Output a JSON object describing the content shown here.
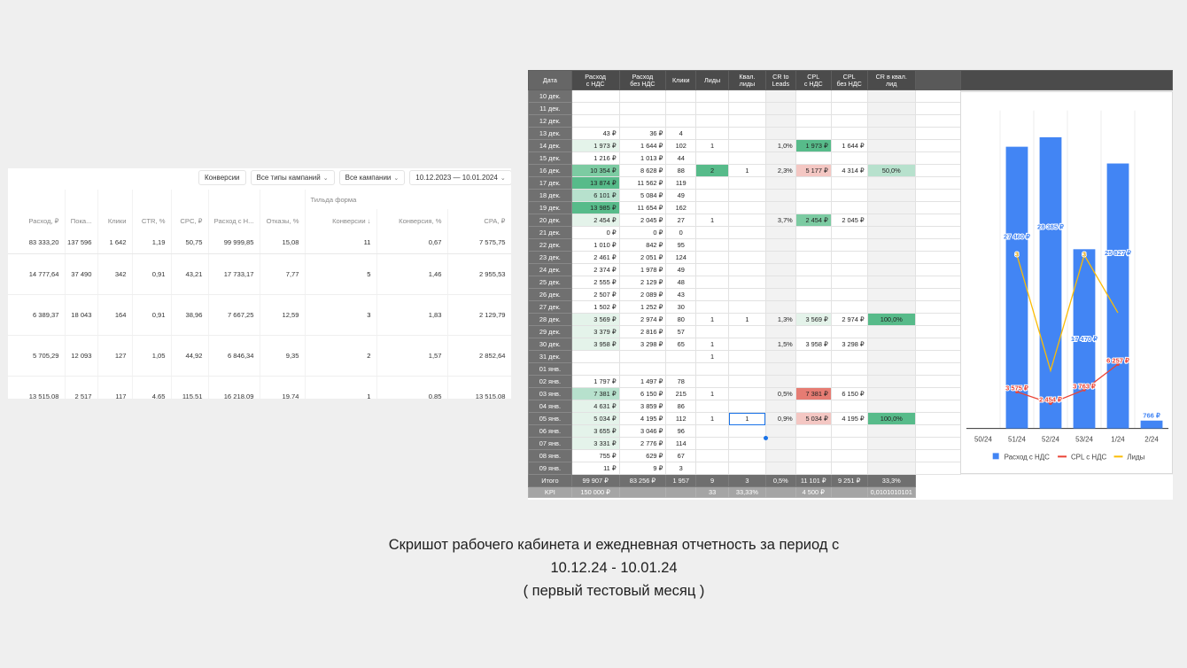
{
  "cabinet": {
    "filters": [
      {
        "label": "Конверсии",
        "chev": false
      },
      {
        "label": "Все типы кампаний",
        "chev": true
      },
      {
        "label": "Все кампании",
        "chev": true
      },
      {
        "label": "10.12.2023 — 10.01.2024",
        "chev": true
      },
      {
        "label": "»",
        "chev": false
      }
    ],
    "goal_label": "Тильда форма",
    "headers": [
      "Расход, ₽",
      "Пока...",
      "Клики",
      "CTR, %",
      "CPC, ₽",
      "Расход с Н...",
      "Отказы, %",
      "Конверсии ↓",
      "Конверсия, %",
      "CPA, ₽"
    ],
    "total": [
      "83 333,20",
      "137 596",
      "1 642",
      "1,19",
      "50,75",
      "99 999,85",
      "15,08",
      "11",
      "0,67",
      "7 575,75"
    ],
    "rows": [
      [
        "14 777,64",
        "37 490",
        "342",
        "0,91",
        "43,21",
        "17 733,17",
        "7,77",
        "5",
        "1,46",
        "2 955,53"
      ],
      [
        "6 389,37",
        "18 043",
        "164",
        "0,91",
        "38,96",
        "7 667,25",
        "12,59",
        "3",
        "1,83",
        "2 129,79"
      ],
      [
        "5 705,29",
        "12 093",
        "127",
        "1,05",
        "44,92",
        "6 846,34",
        "9,35",
        "2",
        "1,57",
        "2 852,64"
      ],
      [
        "13 515,08",
        "2 517",
        "117",
        "4,65",
        "115,51",
        "16 218,09",
        "19,74",
        "1",
        "0,85",
        "13 515,08"
      ]
    ]
  },
  "sheet": {
    "headers": [
      "Дата",
      "Расход\nс НДС",
      "Расход\nбез НДС",
      "Клики",
      "Лиды",
      "Квал.\nлиды",
      "CR to\nLeads",
      "CPL\nс НДС",
      "CPL\nбез НДС",
      "CR в квал.\nлид"
    ],
    "rows": [
      [
        "10 дек.",
        "",
        "",
        "",
        "",
        "",
        "",
        "",
        "",
        ""
      ],
      [
        "11 дек.",
        "",
        "",
        "",
        "",
        "",
        "",
        "",
        "",
        ""
      ],
      [
        "12 дек.",
        "",
        "",
        "",
        "",
        "",
        "",
        "",
        "",
        ""
      ],
      [
        "13 дек.",
        "43 ₽",
        "36 ₽",
        "4",
        "",
        "",
        "",
        "",
        "",
        ""
      ],
      [
        "14 дек.",
        "1 973 ₽",
        "1 644 ₽",
        "102",
        "1",
        "",
        "1,0%",
        "1 973 ₽",
        "1 644 ₽",
        ""
      ],
      [
        "15 дек.",
        "1 216 ₽",
        "1 013 ₽",
        "44",
        "",
        "",
        "",
        "",
        "",
        ""
      ],
      [
        "16 дек.",
        "10 354 ₽",
        "8 628 ₽",
        "88",
        "2",
        "1",
        "2,3%",
        "5 177 ₽",
        "4 314 ₽",
        "50,0%"
      ],
      [
        "17 дек.",
        "13 874 ₽",
        "11 562 ₽",
        "119",
        "",
        "",
        "",
        "",
        "",
        ""
      ],
      [
        "18 дек.",
        "6 101 ₽",
        "5 084 ₽",
        "49",
        "",
        "",
        "",
        "",
        "",
        ""
      ],
      [
        "19 дек.",
        "13 985 ₽",
        "11 654 ₽",
        "162",
        "",
        "",
        "",
        "",
        "",
        ""
      ],
      [
        "20 дек.",
        "2 454 ₽",
        "2 045 ₽",
        "27",
        "1",
        "",
        "3,7%",
        "2 454 ₽",
        "2 045 ₽",
        ""
      ],
      [
        "21 дек.",
        "0 ₽",
        "0 ₽",
        "0",
        "",
        "",
        "",
        "",
        "",
        ""
      ],
      [
        "22 дек.",
        "1 010 ₽",
        "842 ₽",
        "95",
        "",
        "",
        "",
        "",
        "",
        ""
      ],
      [
        "23 дек.",
        "2 461 ₽",
        "2 051 ₽",
        "124",
        "",
        "",
        "",
        "",
        "",
        ""
      ],
      [
        "24 дек.",
        "2 374 ₽",
        "1 978 ₽",
        "49",
        "",
        "",
        "",
        "",
        "",
        ""
      ],
      [
        "25 дек.",
        "2 555 ₽",
        "2 129 ₽",
        "48",
        "",
        "",
        "",
        "",
        "",
        ""
      ],
      [
        "26 дек.",
        "2 507 ₽",
        "2 089 ₽",
        "43",
        "",
        "",
        "",
        "",
        "",
        ""
      ],
      [
        "27 дек.",
        "1 502 ₽",
        "1 252 ₽",
        "30",
        "",
        "",
        "",
        "",
        "",
        ""
      ],
      [
        "28 дек.",
        "3 569 ₽",
        "2 974 ₽",
        "80",
        "1",
        "1",
        "1,3%",
        "3 569 ₽",
        "2 974 ₽",
        "100,0%"
      ],
      [
        "29 дек.",
        "3 379 ₽",
        "2 816 ₽",
        "57",
        "",
        "",
        "",
        "",
        "",
        ""
      ],
      [
        "30 дек.",
        "3 958 ₽",
        "3 298 ₽",
        "65",
        "1",
        "",
        "1,5%",
        "3 958 ₽",
        "3 298 ₽",
        ""
      ],
      [
        "31 дек.",
        "",
        "",
        "",
        "1",
        "",
        "",
        "",
        "",
        ""
      ],
      [
        "01 янв.",
        "",
        "",
        "",
        "",
        "",
        "",
        "",
        "",
        ""
      ],
      [
        "02 янв.",
        "1 797 ₽",
        "1 497 ₽",
        "78",
        "",
        "",
        "",
        "",
        "",
        ""
      ],
      [
        "03 янв.",
        "7 381 ₽",
        "6 150 ₽",
        "215",
        "1",
        "",
        "0,5%",
        "7 381 ₽",
        "6 150 ₽",
        ""
      ],
      [
        "04 янв.",
        "4 631 ₽",
        "3 859 ₽",
        "86",
        "",
        "",
        "",
        "",
        "",
        ""
      ],
      [
        "05 янв.",
        "5 034 ₽",
        "4 195 ₽",
        "112",
        "1",
        "1",
        "0,9%",
        "5 034 ₽",
        "4 195 ₽",
        "100,0%"
      ],
      [
        "06 янв.",
        "3 655 ₽",
        "3 046 ₽",
        "96",
        "",
        "",
        "",
        "",
        "",
        ""
      ],
      [
        "07 янв.",
        "3 331 ₽",
        "2 776 ₽",
        "114",
        "",
        "",
        "",
        "",
        "",
        ""
      ],
      [
        "08 янв.",
        "755 ₽",
        "629 ₽",
        "67",
        "",
        "",
        "",
        "",
        "",
        ""
      ],
      [
        "09 янв.",
        "11 ₽",
        "9 ₽",
        "3",
        "",
        "",
        "",
        "",
        "",
        ""
      ]
    ],
    "total": [
      "Итого",
      "99 907 ₽",
      "83 256 ₽",
      "1 957",
      "9",
      "3",
      "0,5%",
      "11 101 ₽",
      "9 251 ₽",
      "33,3%"
    ],
    "kpi": [
      "KPI",
      "150 000 ₽",
      "",
      "",
      "33",
      "33,33%",
      "",
      "4 500 ₽",
      "",
      "0,0101010101"
    ],
    "colors": {
      "green_strong": "#57bb8a",
      "green_mid": "#7ccba2",
      "green_light": "#b7e1cd",
      "green_pale": "#e4f3ea",
      "red_strong": "#e67c73",
      "red_light": "#f4c7c3",
      "red_pale": "#fbe6e3"
    }
  },
  "chart_data": {
    "type": "bar",
    "categories": [
      "50/24",
      "51/24",
      "52/24",
      "53/24",
      "1/24",
      "2/24"
    ],
    "ylim": [
      0,
      31000
    ],
    "series": [
      {
        "name": "Расход с НДС",
        "type": "bar",
        "color": "#4285f4",
        "values": [
          null,
          27460,
          28385,
          17470,
          25827,
          766
        ],
        "labels": [
          "",
          "27 460 ₽",
          "28 385 ₽",
          "17 470 ₽",
          "25 827 ₽",
          "766 ₽"
        ]
      },
      {
        "name": "CPL с НДС",
        "type": "line",
        "color": "#ea4335",
        "values": [
          null,
          3575,
          2454,
          3763,
          6257,
          null
        ],
        "labels": [
          "",
          "3 575 ₽",
          "2 454 ₽",
          "3 763 ₽",
          "6 257 ₽",
          ""
        ]
      },
      {
        "name": "Лиды",
        "type": "line",
        "color": "#fbbc04",
        "values": [
          null,
          3,
          1,
          3,
          2,
          null
        ],
        "labels": [
          "",
          "3",
          "",
          "3",
          "",
          ""
        ],
        "ylim": [
          0,
          5.5
        ]
      }
    ]
  },
  "caption": {
    "line1": "Скришот рабочего кабинета и ежедневная отчетность за период с",
    "line2": "10.12.24 - 10.01.24",
    "line3": "( первый тестовый месяц )"
  }
}
